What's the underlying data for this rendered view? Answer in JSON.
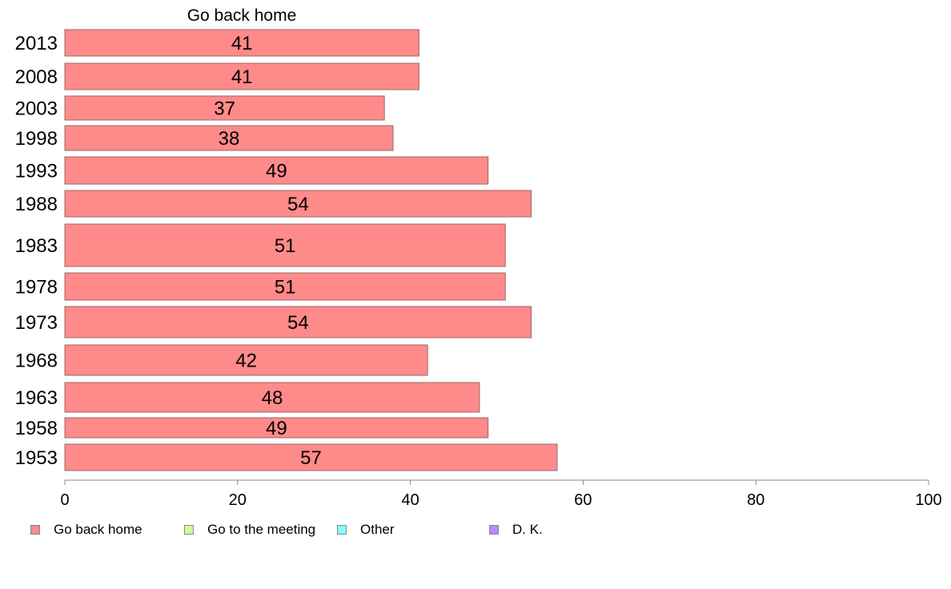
{
  "chart_data": {
    "type": "bar",
    "orientation": "horizontal",
    "series_title": "Go back home",
    "categories": [
      "2013",
      "2008",
      "2003",
      "1998",
      "1993",
      "1988",
      "1983",
      "1978",
      "1973",
      "1968",
      "1963",
      "1958",
      "1953"
    ],
    "values": [
      41,
      41,
      37,
      38,
      49,
      54,
      51,
      51,
      54,
      42,
      48,
      49,
      57
    ],
    "data_labels": [
      "41",
      "41",
      "37",
      "38",
      "49",
      "54",
      "51",
      "51",
      "54",
      "42",
      "48",
      "49",
      "57"
    ],
    "xlim": [
      0,
      100
    ],
    "x_ticks": [
      "0",
      "20",
      "40",
      "60",
      "80",
      "100"
    ],
    "grid": false,
    "legend_position": "bottom-left",
    "legend": [
      {
        "name": "Go back home",
        "color": "#ff8a8a"
      },
      {
        "name": "Go to the meeting",
        "color": "#ccff99"
      },
      {
        "name": "Other",
        "color": "#88ffff"
      },
      {
        "name": "D. K.",
        "color": "#bb88ff"
      }
    ]
  }
}
